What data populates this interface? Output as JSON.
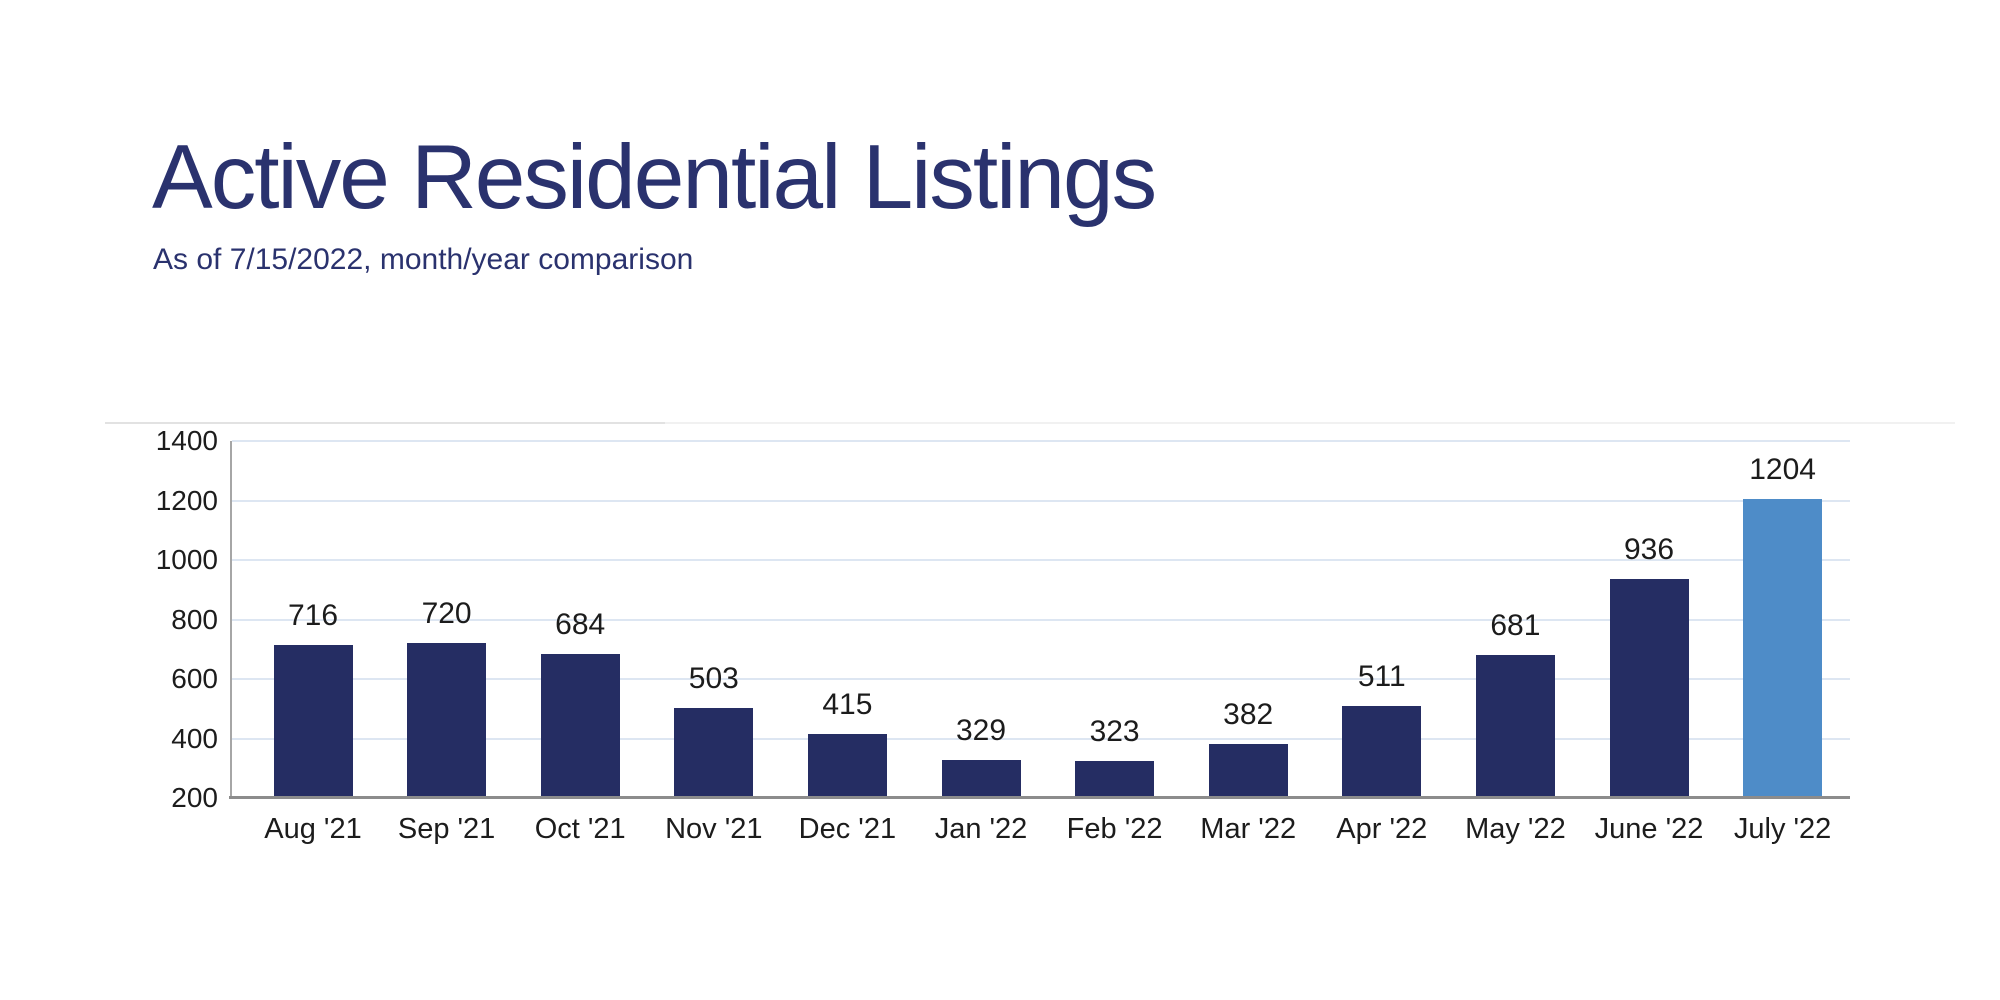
{
  "header": {
    "title": "Active Residential Listings",
    "subtitle": "As of 7/15/2022, month/year comparison"
  },
  "colors": {
    "title_text": "#2A326E",
    "subtitle_text": "#2A326E",
    "bar": "#252D63",
    "bar_highlight": "#4E8CC8",
    "gridline": "#DDE6F2",
    "y_axis_line": "#A6A6A6",
    "x_axis_line": "#8C8C8C",
    "tick_text": "#1C1C1C"
  },
  "chart_data": {
    "type": "bar",
    "title": "Active Residential Listings",
    "subtitle": "As of 7/15/2022, month/year comparison",
    "categories": [
      "Aug '21",
      "Sep '21",
      "Oct '21",
      "Nov '21",
      "Dec '21",
      "Jan '22",
      "Feb '22",
      "Mar '22",
      "Apr '22",
      "May '22",
      "June '22",
      "July '22"
    ],
    "values": [
      716,
      720,
      684,
      503,
      415,
      329,
      323,
      382,
      511,
      681,
      936,
      1204
    ],
    "data_labels": [
      "716",
      "720",
      "684",
      "503",
      "415",
      "329",
      "323",
      "382",
      "511",
      "681",
      "936",
      "1204"
    ],
    "highlight_index": 11,
    "xlabel": "",
    "ylabel": "",
    "ylim": [
      200,
      1400
    ],
    "yticks": [
      200,
      400,
      600,
      800,
      1000,
      1200,
      1400
    ],
    "ytick_labels": [
      "200",
      "400",
      "600",
      "800",
      "1000",
      "1200",
      "1400"
    ],
    "grid": "horizontal",
    "legend": "none"
  }
}
